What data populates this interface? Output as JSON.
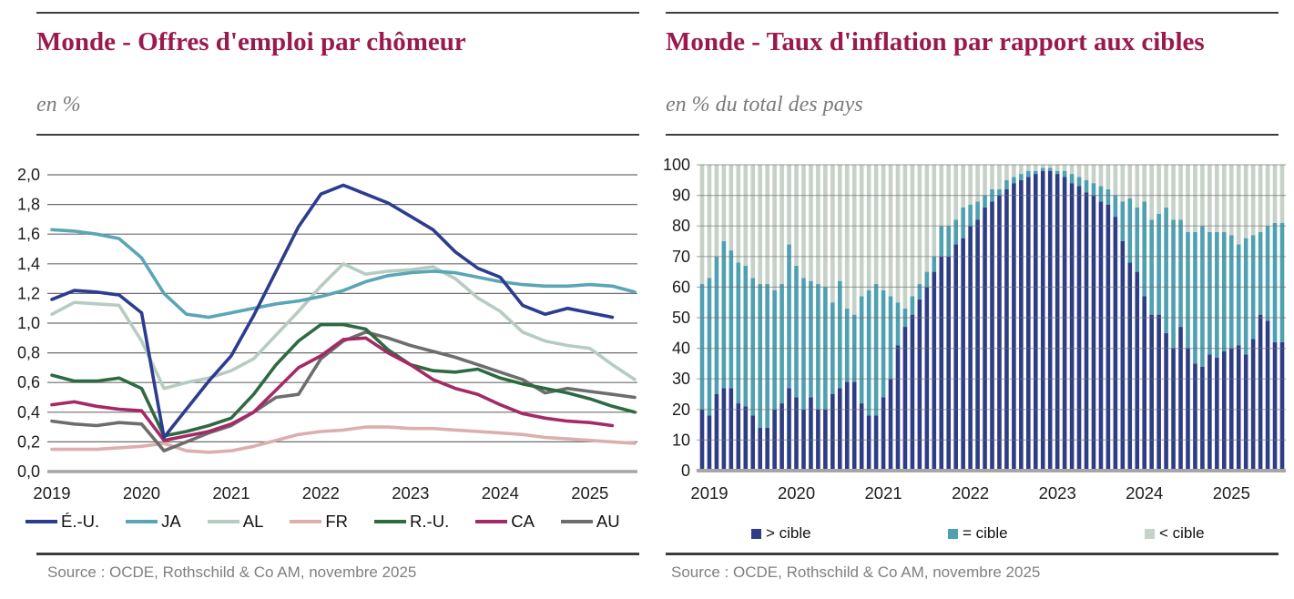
{
  "panels": [
    {
      "title": "Monde - Offres d'emploi par chômeur",
      "subtitle": "en %",
      "source": "Source : OCDE, Rothschild & Co AM, novembre 2025"
    },
    {
      "title": "Monde - Taux d'inflation par rapport aux cibles",
      "subtitle": "en % du total des pays",
      "source": "Source : OCDE, Rothschild & Co AM, novembre 2025"
    }
  ],
  "colors": {
    "title_maroon": "#9a1a4e",
    "subtitle_gray": "#7b7b7b",
    "source_gray": "#7f7f7f",
    "rule_dark": "#3d3d3d",
    "grid_gray": "#8a8a8a",
    "baseline_gray": "#a6a6a6",
    "axis_text": "#1c1c1c"
  },
  "chart_data": [
    {
      "type": "line",
      "title": "Monde - Offres d'emploi par chômeur",
      "ylabel": "en %",
      "x_years": [
        "2019",
        "2020",
        "2021",
        "2022",
        "2023",
        "2024",
        "2025"
      ],
      "points_per_year": 4,
      "x_start": "2019-Q1",
      "x_end": "2025-Q3",
      "ylim": [
        0.0,
        2.0
      ],
      "ytick_step": 0.2,
      "ytick_labels": [
        "0,0",
        "0,2",
        "0,4",
        "0,6",
        "0,8",
        "1,0",
        "1,2",
        "1,4",
        "1,6",
        "1,8",
        "2,0"
      ],
      "grid": true,
      "legend_position": "bottom",
      "series": [
        {
          "name": "É.-U.",
          "color": "#2c3c8e",
          "values": [
            1.16,
            1.22,
            1.21,
            1.19,
            1.07,
            0.23,
            0.42,
            0.61,
            0.78,
            1.05,
            1.35,
            1.65,
            1.87,
            1.93,
            1.87,
            1.81,
            1.72,
            1.63,
            1.48,
            1.37,
            1.31,
            1.12,
            1.06,
            1.1,
            1.07,
            1.04
          ]
        },
        {
          "name": "JA",
          "color": "#5aa6b6",
          "values": [
            1.63,
            1.62,
            1.6,
            1.57,
            1.44,
            1.2,
            1.06,
            1.04,
            1.07,
            1.1,
            1.13,
            1.15,
            1.18,
            1.22,
            1.28,
            1.32,
            1.34,
            1.35,
            1.34,
            1.31,
            1.28,
            1.26,
            1.25,
            1.25,
            1.26,
            1.25,
            1.21
          ]
        },
        {
          "name": "AL",
          "color": "#b7ccc1",
          "values": [
            1.06,
            1.14,
            1.13,
            1.12,
            0.88,
            0.56,
            0.6,
            0.63,
            0.68,
            0.76,
            0.92,
            1.08,
            1.25,
            1.4,
            1.33,
            1.35,
            1.36,
            1.38,
            1.3,
            1.17,
            1.08,
            0.94,
            0.88,
            0.85,
            0.83,
            0.72,
            0.62
          ]
        },
        {
          "name": "FR",
          "color": "#dcaeae",
          "values": [
            0.15,
            0.15,
            0.15,
            0.16,
            0.17,
            0.19,
            0.14,
            0.13,
            0.14,
            0.17,
            0.21,
            0.25,
            0.27,
            0.28,
            0.3,
            0.3,
            0.29,
            0.29,
            0.28,
            0.27,
            0.26,
            0.25,
            0.23,
            0.22,
            0.21,
            0.2,
            0.19
          ]
        },
        {
          "name": "R.-U.",
          "color": "#2d6a42",
          "values": [
            0.65,
            0.61,
            0.61,
            0.63,
            0.56,
            0.24,
            0.27,
            0.31,
            0.36,
            0.52,
            0.72,
            0.88,
            0.99,
            0.99,
            0.96,
            0.82,
            0.72,
            0.68,
            0.67,
            0.69,
            0.63,
            0.59,
            0.56,
            0.53,
            0.49,
            0.44,
            0.4
          ]
        },
        {
          "name": "CA",
          "color": "#a42a66",
          "values": [
            0.45,
            0.47,
            0.44,
            0.42,
            0.41,
            0.21,
            0.24,
            0.27,
            0.32,
            0.4,
            0.55,
            0.7,
            0.78,
            0.89,
            0.9,
            0.8,
            0.72,
            0.62,
            0.56,
            0.52,
            0.45,
            0.39,
            0.36,
            0.34,
            0.33,
            0.31
          ]
        },
        {
          "name": "AU",
          "color": "#6d6d6d",
          "values": [
            0.34,
            0.32,
            0.31,
            0.33,
            0.32,
            0.14,
            0.2,
            0.26,
            0.31,
            0.4,
            0.5,
            0.52,
            0.76,
            0.88,
            0.94,
            0.9,
            0.85,
            0.81,
            0.77,
            0.72,
            0.67,
            0.62,
            0.53,
            0.56,
            0.54,
            0.52,
            0.5
          ]
        }
      ]
    },
    {
      "type": "bar",
      "stacked": true,
      "stack_total": 100,
      "title": "Monde - Taux d'inflation par rapport aux cibles",
      "ylabel": "en % du total des pays",
      "x_years": [
        "2019",
        "2020",
        "2021",
        "2022",
        "2023",
        "2024",
        "2025"
      ],
      "points_per_year": 12,
      "x_start": "2019-01",
      "x_end": "2025-09",
      "ylim": [
        0,
        100
      ],
      "ytick_step": 10,
      "ytick_labels": [
        "0",
        "10",
        "20",
        "30",
        "40",
        "50",
        "60",
        "70",
        "80",
        "90",
        "100"
      ],
      "grid": true,
      "legend_position": "bottom",
      "series": [
        {
          "name": "> cible",
          "color": "#2e3d85",
          "values": [
            20,
            18,
            25,
            27,
            27,
            22,
            21,
            18,
            14,
            14,
            20,
            22,
            27,
            24,
            20,
            24,
            20,
            20,
            25,
            27,
            29,
            29,
            22,
            18,
            18,
            24,
            30,
            41,
            47,
            51,
            56,
            60,
            65,
            70,
            70,
            74,
            76,
            80,
            82,
            86,
            88,
            90,
            92,
            94,
            95,
            96,
            97,
            98,
            98,
            97,
            96,
            94,
            93,
            91,
            90,
            88,
            87,
            83,
            75,
            68,
            65,
            57,
            51,
            51,
            45,
            40,
            47,
            40,
            35,
            34,
            38,
            37,
            39,
            40,
            41,
            38,
            43,
            51,
            49,
            42,
            42
          ]
        },
        {
          "name": "= cible",
          "color": "#4fa0b0",
          "values": [
            41,
            45,
            45,
            48,
            45,
            46,
            46,
            45,
            47,
            47,
            39,
            39,
            47,
            43,
            43,
            38,
            41,
            40,
            30,
            35,
            24,
            22,
            35,
            41,
            43,
            35,
            27,
            14,
            6,
            6,
            5,
            5,
            5,
            10,
            10,
            8,
            10,
            7,
            6,
            4,
            4,
            2,
            3,
            2,
            2,
            2,
            1,
            1,
            1,
            1,
            2,
            3,
            3,
            4,
            4,
            5,
            5,
            7,
            13,
            21,
            21,
            31,
            31,
            33,
            41,
            42,
            35,
            38,
            43,
            46,
            40,
            41,
            39,
            37,
            33,
            38,
            34,
            27,
            31,
            39,
            39
          ]
        },
        {
          "name": "< cible",
          "color": "#c6d1c8",
          "values": [
            39,
            37,
            30,
            25,
            28,
            32,
            33,
            37,
            39,
            39,
            41,
            39,
            26,
            33,
            37,
            38,
            39,
            40,
            45,
            38,
            47,
            49,
            43,
            41,
            39,
            41,
            43,
            45,
            47,
            43,
            39,
            35,
            30,
            20,
            20,
            18,
            14,
            13,
            12,
            10,
            8,
            8,
            5,
            4,
            3,
            2,
            2,
            1,
            1,
            2,
            2,
            3,
            4,
            5,
            6,
            7,
            8,
            10,
            12,
            11,
            14,
            12,
            18,
            16,
            14,
            18,
            18,
            22,
            22,
            20,
            22,
            22,
            22,
            23,
            26,
            24,
            23,
            22,
            20,
            19,
            19
          ]
        }
      ]
    }
  ]
}
